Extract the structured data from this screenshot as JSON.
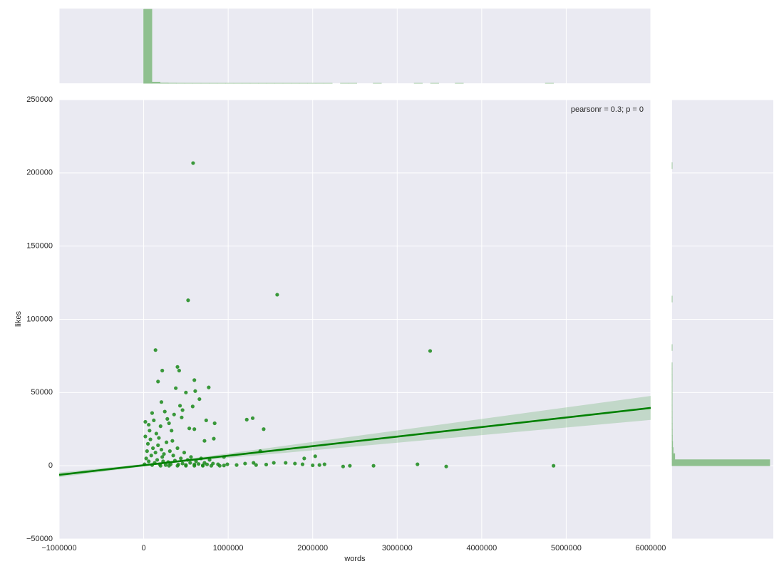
{
  "chart_data": {
    "type": "scatter",
    "xlabel": "words",
    "ylabel": "likes",
    "annotation": "pearsonr = 0.3; p = 0",
    "xlim": [
      -1000000,
      6000000
    ],
    "ylim": [
      -50000,
      250000
    ],
    "xticks": [
      {
        "value": -1000000,
        "label": "−1000000"
      },
      0,
      1000000,
      2000000,
      3000000,
      4000000,
      5000000,
      6000000
    ],
    "yticks": [
      {
        "value": -50000,
        "label": "−50000"
      },
      0,
      50000,
      100000,
      150000,
      200000,
      250000
    ],
    "grid": true,
    "background": "#eaeaf2",
    "color": "#1a8a1a",
    "x": [
      585000,
      526000,
      1580000,
      3390000,
      140000,
      400000,
      420000,
      600000,
      610000,
      220000,
      170000,
      770000,
      380000,
      500000,
      660000,
      210000,
      580000,
      430000,
      460000,
      1220000,
      1290000,
      1420000,
      740000,
      840000,
      540000,
      600000,
      830000,
      720000,
      1380000,
      2030000,
      1900000,
      1540000,
      1680000,
      1790000,
      1880000,
      2140000,
      2360000,
      2440000,
      2720000,
      3240000,
      3580000,
      4850000,
      1100000,
      1200000,
      950000,
      990000,
      1300000,
      1330000,
      1450000,
      2000000,
      2080000,
      20000,
      60000,
      100000,
      120000,
      150000,
      200000,
      250000,
      280000,
      300000,
      330000,
      360000,
      450000,
      20000,
      50000,
      80000,
      110000,
      140000,
      170000,
      210000,
      240000,
      270000,
      310000,
      350000,
      400000,
      440000,
      480000,
      520000,
      560000,
      620000,
      680000,
      720000,
      780000,
      820000,
      880000,
      30000,
      60000,
      90000,
      130000,
      160000,
      190000,
      230000,
      260000,
      290000,
      320000,
      370000,
      410000,
      460000,
      500000,
      550000,
      600000,
      650000,
      700000,
      750000,
      40000,
      70000,
      180000,
      220000,
      340000,
      10000,
      100000,
      200000,
      300000,
      400000,
      500000,
      600000,
      700000,
      800000,
      900000,
      950000
    ],
    "values": [
      206700,
      113000,
      116800,
      78400,
      79000,
      67500,
      65000,
      58500,
      51000,
      65000,
      57500,
      53500,
      53000,
      50000,
      45500,
      43500,
      40500,
      41000,
      38000,
      31500,
      32500,
      25000,
      31000,
      29000,
      25500,
      25000,
      18500,
      17000,
      10000,
      6500,
      5000,
      2000,
      2000,
      1500,
      1000,
      1000,
      -500,
      0,
      0,
      1000,
      -500,
      0,
      500,
      1500,
      6000,
      1000,
      2000,
      500,
      800,
      300,
      500,
      30000,
      28000,
      36000,
      31000,
      22000,
      27000,
      37000,
      32000,
      29000,
      24000,
      35000,
      33000,
      20000,
      15000,
      18000,
      12000,
      9000,
      14000,
      11000,
      8000,
      16000,
      10000,
      7000,
      12000,
      5000,
      9000,
      4000,
      6000,
      3000,
      5000,
      2000,
      4000,
      1500,
      1000,
      5000,
      3000,
      7000,
      2000,
      4000,
      1000,
      3000,
      500,
      2500,
      1000,
      3500,
      800,
      1500,
      500,
      2000,
      800,
      1200,
      300,
      900,
      10000,
      24000,
      19000,
      6000,
      17000,
      1000,
      500,
      0,
      0,
      0,
      0,
      0,
      0,
      0,
      0,
      200
    ],
    "fit": {
      "color": "#008000",
      "x": [
        -1000000,
        300000,
        6000000
      ],
      "values": [
        -6200,
        2300,
        39500
      ],
      "ci_lower": [
        -7800,
        1700,
        31300
      ],
      "ci_upper": [
        -4600,
        2900,
        47700
      ]
    },
    "x_hist": {
      "color": "#8fc08f",
      "bins": [
        0,
        97000,
        194000,
        291000,
        388000,
        485000,
        582000,
        679000,
        776000,
        873000,
        970000,
        1067000,
        1164000,
        1261000,
        1358000,
        1455000,
        1552000,
        1649000,
        1746000,
        1843000,
        1940000,
        2037000,
        2134000,
        2231000,
        2328000,
        2425000,
        2522000,
        2619000,
        2716000,
        2813000,
        2910000,
        3007000,
        3104000,
        3201000,
        3298000,
        3395000,
        3492000,
        3589000,
        3686000,
        3783000,
        3880000,
        3977000,
        4074000,
        4171000,
        4268000,
        4365000,
        4462000,
        4559000,
        4656000,
        4753000,
        4850000
      ],
      "counts": [
        5600,
        90,
        25,
        12,
        6,
        4,
        3,
        2,
        2,
        1,
        1,
        1,
        2,
        1,
        1,
        1,
        1,
        1,
        1,
        1,
        1,
        1,
        1,
        0,
        1,
        1,
        0,
        0,
        1,
        0,
        0,
        0,
        0,
        1,
        0,
        1,
        0,
        0,
        1,
        0,
        0,
        0,
        0,
        0,
        0,
        0,
        0,
        0,
        0,
        1
      ]
    },
    "y_hist": {
      "color": "#8fc08f",
      "bins": [
        0,
        4140,
        8280,
        12420,
        16560,
        20700,
        24840,
        28980,
        33120,
        37260,
        41400,
        45540,
        49680,
        53820,
        57960,
        62100,
        66240,
        70380,
        74520,
        78660,
        82800,
        86940,
        91080,
        95220,
        99360,
        103500,
        107640,
        111780,
        115920,
        120060,
        124200,
        128340,
        132480,
        136620,
        140760,
        144900,
        149040,
        153180,
        157320,
        161460,
        165600,
        169740,
        173880,
        178020,
        182160,
        186300,
        190440,
        194580,
        198720,
        202860,
        207000
      ],
      "counts": [
        5500,
        150,
        60,
        30,
        15,
        10,
        8,
        6,
        5,
        3,
        2,
        3,
        2,
        2,
        2,
        1,
        1,
        0,
        0,
        2,
        0,
        0,
        0,
        0,
        0,
        0,
        0,
        2,
        0,
        0,
        0,
        0,
        0,
        0,
        0,
        0,
        0,
        0,
        0,
        0,
        0,
        0,
        0,
        0,
        0,
        0,
        0,
        0,
        0,
        1
      ]
    }
  }
}
